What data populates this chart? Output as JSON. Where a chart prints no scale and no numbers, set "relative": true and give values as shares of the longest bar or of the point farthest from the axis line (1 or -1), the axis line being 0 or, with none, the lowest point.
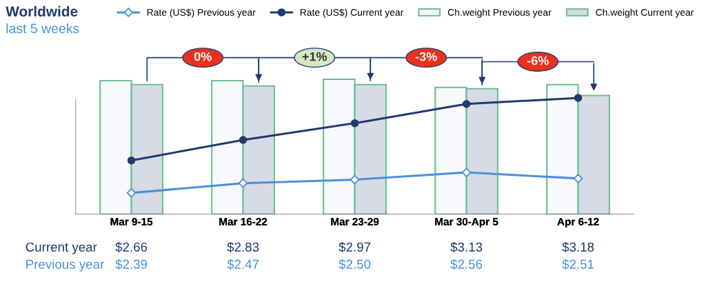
{
  "chart_data": [
    {
      "type": "bar",
      "title": "Worldwide",
      "subtitle": "last 5 weeks",
      "relative": true,
      "categories": [
        "Mar 9-15",
        "Mar 16-22",
        "Mar 23-29",
        "Mar 30-Apr 5",
        "Apr 6-12"
      ],
      "series": [
        {
          "name": "Ch.weight Previous year",
          "color": "#f7f9fc",
          "values": [
            0.99,
            0.99,
            1.0,
            0.94,
            0.96
          ]
        },
        {
          "name": "Ch.weight Current year",
          "color": "#d6dbe6",
          "values": [
            0.96,
            0.95,
            0.96,
            0.93,
            0.88
          ]
        }
      ],
      "annotations": [
        "0%",
        "+1%",
        "-3%",
        "-6%"
      ],
      "legend": "top"
    },
    {
      "type": "line",
      "categories": [
        "Mar 9-15",
        "Mar 16-22",
        "Mar 23-29",
        "Mar 30-Apr 5",
        "Apr 6-12"
      ],
      "series": [
        {
          "name": "Rate (US$) Previous year",
          "color": "#4a90d9",
          "marker": "diamond",
          "values": [
            2.39,
            2.47,
            2.5,
            2.56,
            2.51
          ],
          "value_labels": [
            "$2.39",
            "$2.47",
            "$2.50",
            "$2.56",
            "$2.51"
          ]
        },
        {
          "name": "Rate (US$) Current year",
          "color": "#1f3a6e",
          "marker": "circle",
          "values": [
            2.66,
            2.83,
            2.97,
            3.13,
            3.18
          ],
          "value_labels": [
            "$2.66",
            "$2.83",
            "$2.97",
            "$3.13",
            "$3.18"
          ]
        }
      ],
      "annotations": [
        "Previous year",
        "Current year"
      ],
      "legend": "top"
    }
  ]
}
